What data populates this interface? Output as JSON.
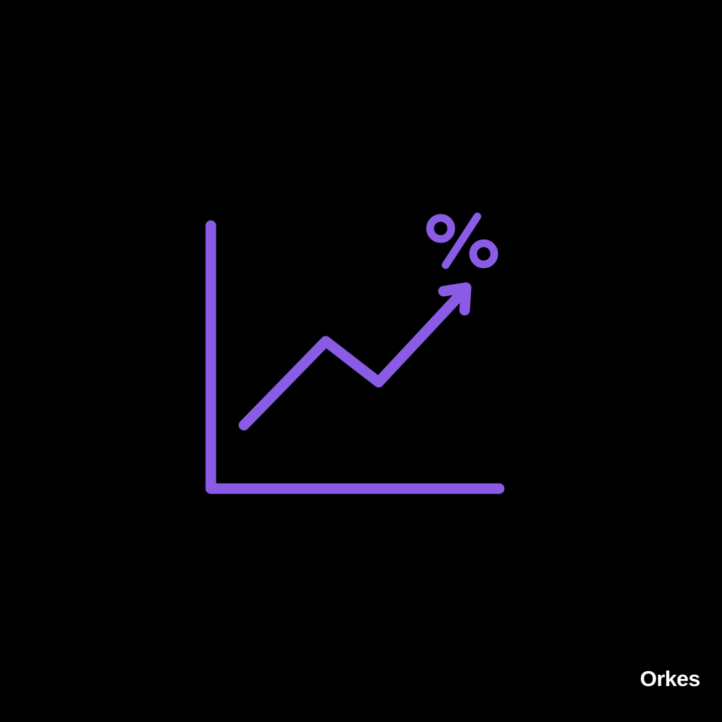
{
  "icon": {
    "name": "growth-chart-percent-icon",
    "symbol": "%",
    "accent_color": "#8A5CE6"
  },
  "brand": {
    "name": "Orkes",
    "color": "#FFFFFF"
  },
  "background_color": "#000000"
}
